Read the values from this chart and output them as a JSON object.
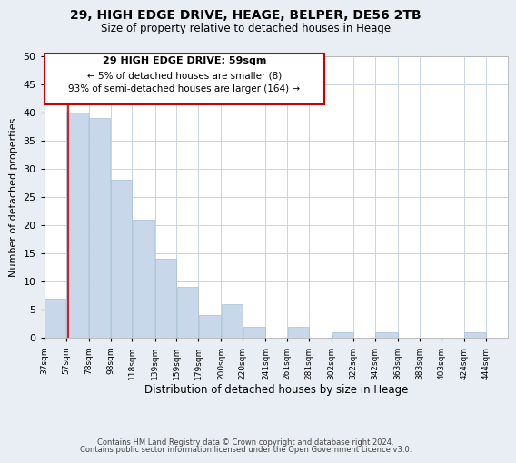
{
  "title": "29, HIGH EDGE DRIVE, HEAGE, BELPER, DE56 2TB",
  "subtitle": "Size of property relative to detached houses in Heage",
  "xlabel": "Distribution of detached houses by size in Heage",
  "ylabel": "Number of detached properties",
  "bar_left_edges": [
    37,
    57,
    78,
    98,
    118,
    139,
    159,
    179,
    200,
    220,
    241,
    261,
    281,
    302,
    322,
    342,
    363,
    383,
    403,
    424
  ],
  "bar_heights": [
    7,
    40,
    39,
    28,
    21,
    14,
    9,
    4,
    6,
    2,
    0,
    2,
    0,
    1,
    0,
    1,
    0,
    0,
    0,
    1
  ],
  "bar_widths": [
    20,
    21,
    20,
    20,
    21,
    20,
    20,
    21,
    20,
    21,
    20,
    20,
    21,
    20,
    20,
    21,
    20,
    20,
    21,
    20
  ],
  "tick_labels": [
    "37sqm",
    "57sqm",
    "78sqm",
    "98sqm",
    "118sqm",
    "139sqm",
    "159sqm",
    "179sqm",
    "200sqm",
    "220sqm",
    "241sqm",
    "261sqm",
    "281sqm",
    "302sqm",
    "322sqm",
    "342sqm",
    "363sqm",
    "383sqm",
    "403sqm",
    "424sqm",
    "444sqm"
  ],
  "tick_positions": [
    37,
    57,
    78,
    98,
    118,
    139,
    159,
    179,
    200,
    220,
    241,
    261,
    281,
    302,
    322,
    342,
    363,
    383,
    403,
    424,
    444
  ],
  "bar_color": "#c8d8ea",
  "bar_edgecolor": "#a8c0d8",
  "marker_x": 59,
  "marker_color": "#cc0000",
  "ylim": [
    0,
    50
  ],
  "xlim": [
    37,
    464
  ],
  "annotation_title": "29 HIGH EDGE DRIVE: 59sqm",
  "annotation_line1": "← 5% of detached houses are smaller (8)",
  "annotation_line2": "93% of semi-detached houses are larger (164) →",
  "footer_line1": "Contains HM Land Registry data © Crown copyright and database right 2024.",
  "footer_line2": "Contains public sector information licensed under the Open Government Licence v3.0.",
  "bg_color": "#e8eef4",
  "plot_bg_color": "#ffffff",
  "grid_color": "#c8d4e0"
}
